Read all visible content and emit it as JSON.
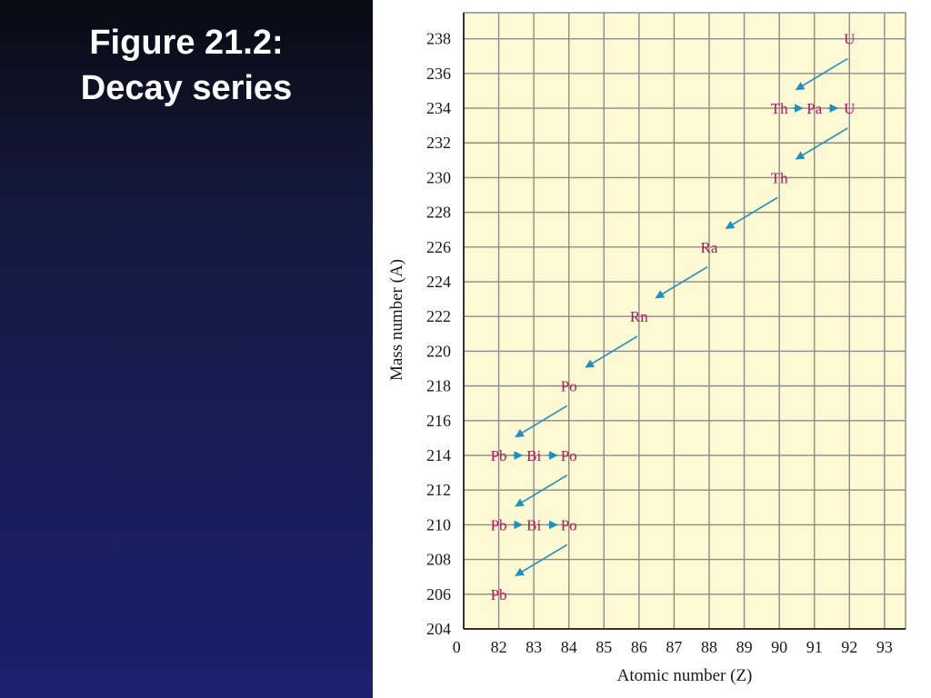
{
  "slide": {
    "title_line1": "Figure 21.2:",
    "title_line2": "Decay series"
  },
  "colors": {
    "plot_background": "#fdf9d2",
    "grid": "#8c8c8c",
    "nuclide_text": "#b0195a",
    "arrow": "#1e8fbf"
  },
  "chart_data": {
    "type": "scatter",
    "title": "",
    "xlabel": "Atomic number (Z)",
    "ylabel": "Mass number (A)",
    "xlim": [
      81,
      93.6
    ],
    "ylim": [
      204,
      239.5
    ],
    "x_ticks": [
      "0",
      "82",
      "83",
      "84",
      "85",
      "86",
      "87",
      "88",
      "89",
      "90",
      "91",
      "92",
      "93"
    ],
    "x_tick_values": [
      80.8,
      82,
      83,
      84,
      85,
      86,
      87,
      88,
      89,
      90,
      91,
      92,
      93
    ],
    "y_ticks": [
      204,
      206,
      208,
      210,
      212,
      214,
      216,
      218,
      220,
      222,
      224,
      226,
      228,
      230,
      232,
      234,
      236,
      238
    ],
    "grid": true,
    "nuclides": [
      {
        "symbol": "U",
        "z": 92,
        "a": 238
      },
      {
        "symbol": "Th",
        "z": 90,
        "a": 234
      },
      {
        "symbol": "Pa",
        "z": 91,
        "a": 234
      },
      {
        "symbol": "U",
        "z": 92,
        "a": 234
      },
      {
        "symbol": "Th",
        "z": 90,
        "a": 230
      },
      {
        "symbol": "Ra",
        "z": 88,
        "a": 226
      },
      {
        "symbol": "Rn",
        "z": 86,
        "a": 222
      },
      {
        "symbol": "Po",
        "z": 84,
        "a": 218
      },
      {
        "symbol": "Pb",
        "z": 82,
        "a": 214
      },
      {
        "symbol": "Bi",
        "z": 83,
        "a": 214
      },
      {
        "symbol": "Po",
        "z": 84,
        "a": 214
      },
      {
        "symbol": "Pb",
        "z": 82,
        "a": 210
      },
      {
        "symbol": "Bi",
        "z": 83,
        "a": 210
      },
      {
        "symbol": "Po",
        "z": 84,
        "a": 210
      },
      {
        "symbol": "Pb",
        "z": 82,
        "a": 206
      }
    ],
    "decays": [
      {
        "type": "alpha",
        "from": [
          92,
          238
        ],
        "to": [
          90,
          234
        ]
      },
      {
        "type": "beta",
        "from": [
          90,
          234
        ],
        "to": [
          91,
          234
        ]
      },
      {
        "type": "beta",
        "from": [
          91,
          234
        ],
        "to": [
          92,
          234
        ]
      },
      {
        "type": "alpha",
        "from": [
          92,
          234
        ],
        "to": [
          90,
          230
        ]
      },
      {
        "type": "alpha",
        "from": [
          90,
          230
        ],
        "to": [
          88,
          226
        ]
      },
      {
        "type": "alpha",
        "from": [
          88,
          226
        ],
        "to": [
          86,
          222
        ]
      },
      {
        "type": "alpha",
        "from": [
          86,
          222
        ],
        "to": [
          84,
          218
        ]
      },
      {
        "type": "alpha",
        "from": [
          84,
          218
        ],
        "to": [
          82,
          214
        ]
      },
      {
        "type": "beta",
        "from": [
          82,
          214
        ],
        "to": [
          83,
          214
        ]
      },
      {
        "type": "beta",
        "from": [
          83,
          214
        ],
        "to": [
          84,
          214
        ]
      },
      {
        "type": "alpha",
        "from": [
          84,
          214
        ],
        "to": [
          82,
          210
        ]
      },
      {
        "type": "beta",
        "from": [
          82,
          210
        ],
        "to": [
          83,
          210
        ]
      },
      {
        "type": "beta",
        "from": [
          83,
          210
        ],
        "to": [
          84,
          210
        ]
      },
      {
        "type": "alpha",
        "from": [
          84,
          210
        ],
        "to": [
          82,
          206
        ]
      }
    ]
  }
}
